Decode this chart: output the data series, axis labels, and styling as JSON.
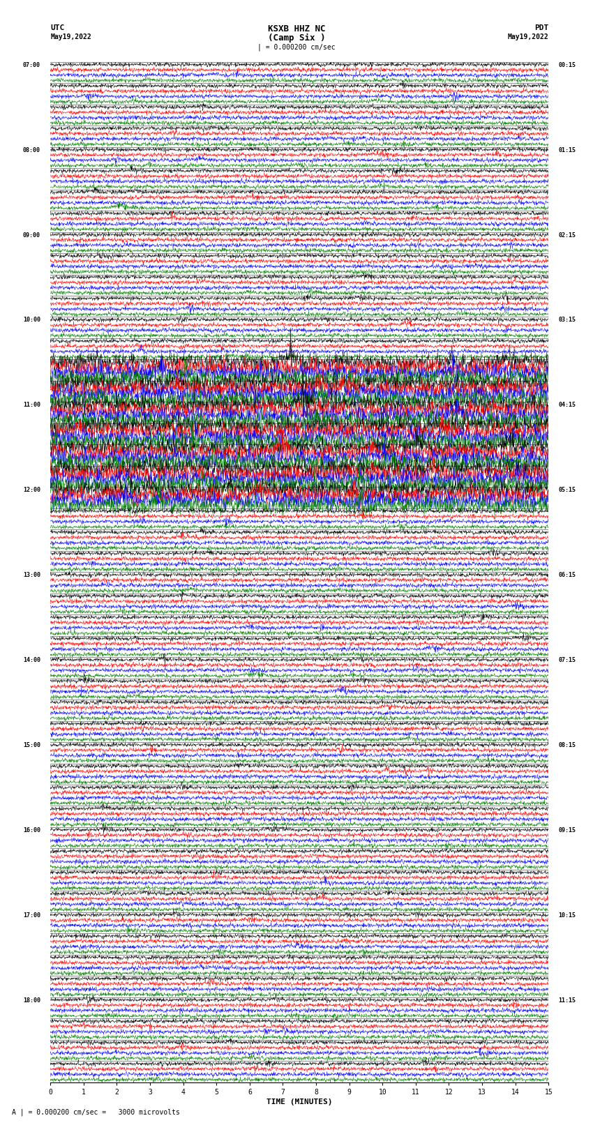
{
  "title_line1": "KSXB HHZ NC",
  "title_line2": "(Camp Six )",
  "scale_text": "| = 0.000200 cm/sec",
  "bottom_text": "A | = 0.000200 cm/sec =   3000 microvolts",
  "utc_label": "UTC",
  "utc_date": "May19,2022",
  "pdt_label": "PDT",
  "pdt_date": "May19,2022",
  "xlabel": "TIME (MINUTES)",
  "xticks": [
    0,
    1,
    2,
    3,
    4,
    5,
    6,
    7,
    8,
    9,
    10,
    11,
    12,
    13,
    14,
    15
  ],
  "time_minutes": 15,
  "colors": [
    "black",
    "red",
    "blue",
    "green"
  ],
  "background": "white",
  "num_groups": 48,
  "traces_per_group": 4,
  "noise_amplitude": 0.25
}
